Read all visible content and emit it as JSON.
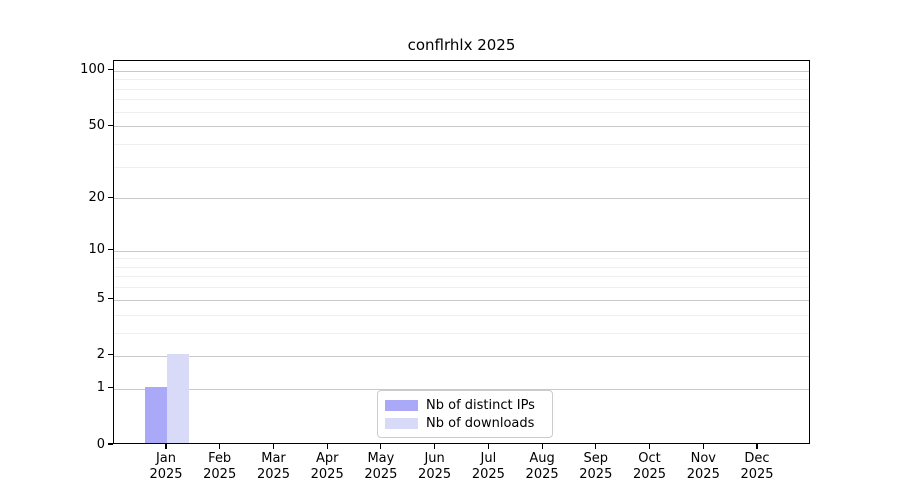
{
  "chart_data": {
    "type": "bar",
    "title": "conflrhlx 2025",
    "categories": [
      "Jan 2025",
      "Feb 2025",
      "Mar 2025",
      "Apr 2025",
      "May 2025",
      "Jun 2025",
      "Jul 2025",
      "Aug 2025",
      "Sep 2025",
      "Oct 2025",
      "Nov 2025",
      "Dec 2025"
    ],
    "x_tick_month": [
      "Jan",
      "Feb",
      "Mar",
      "Apr",
      "May",
      "Jun",
      "Jul",
      "Aug",
      "Sep",
      "Oct",
      "Nov",
      "Dec"
    ],
    "x_tick_year": "2025",
    "series": [
      {
        "name": "Nb of distinct IPs",
        "color": "#a9a9f7",
        "values": [
          1,
          0,
          0,
          0,
          0,
          0,
          0,
          0,
          0,
          0,
          0,
          0
        ]
      },
      {
        "name": "Nb of downloads",
        "color": "#d9d9f8",
        "values": [
          2,
          0,
          0,
          0,
          0,
          0,
          0,
          0,
          0,
          0,
          0,
          0
        ]
      }
    ],
    "yticks": [
      0,
      1,
      2,
      5,
      10,
      20,
      50,
      100
    ],
    "minor_yticks": [
      3,
      4,
      6,
      7,
      8,
      9,
      30,
      40,
      60,
      70,
      80,
      90
    ],
    "y_scale": "log10(value+1)",
    "ylim": [
      0,
      113
    ],
    "grid": "horizontal",
    "legend_position": "lower center",
    "colors": {
      "major_grid": "#c9c9c9",
      "minor_grid": "#efefef",
      "spine": "#000000",
      "background": "#ffffff"
    }
  }
}
